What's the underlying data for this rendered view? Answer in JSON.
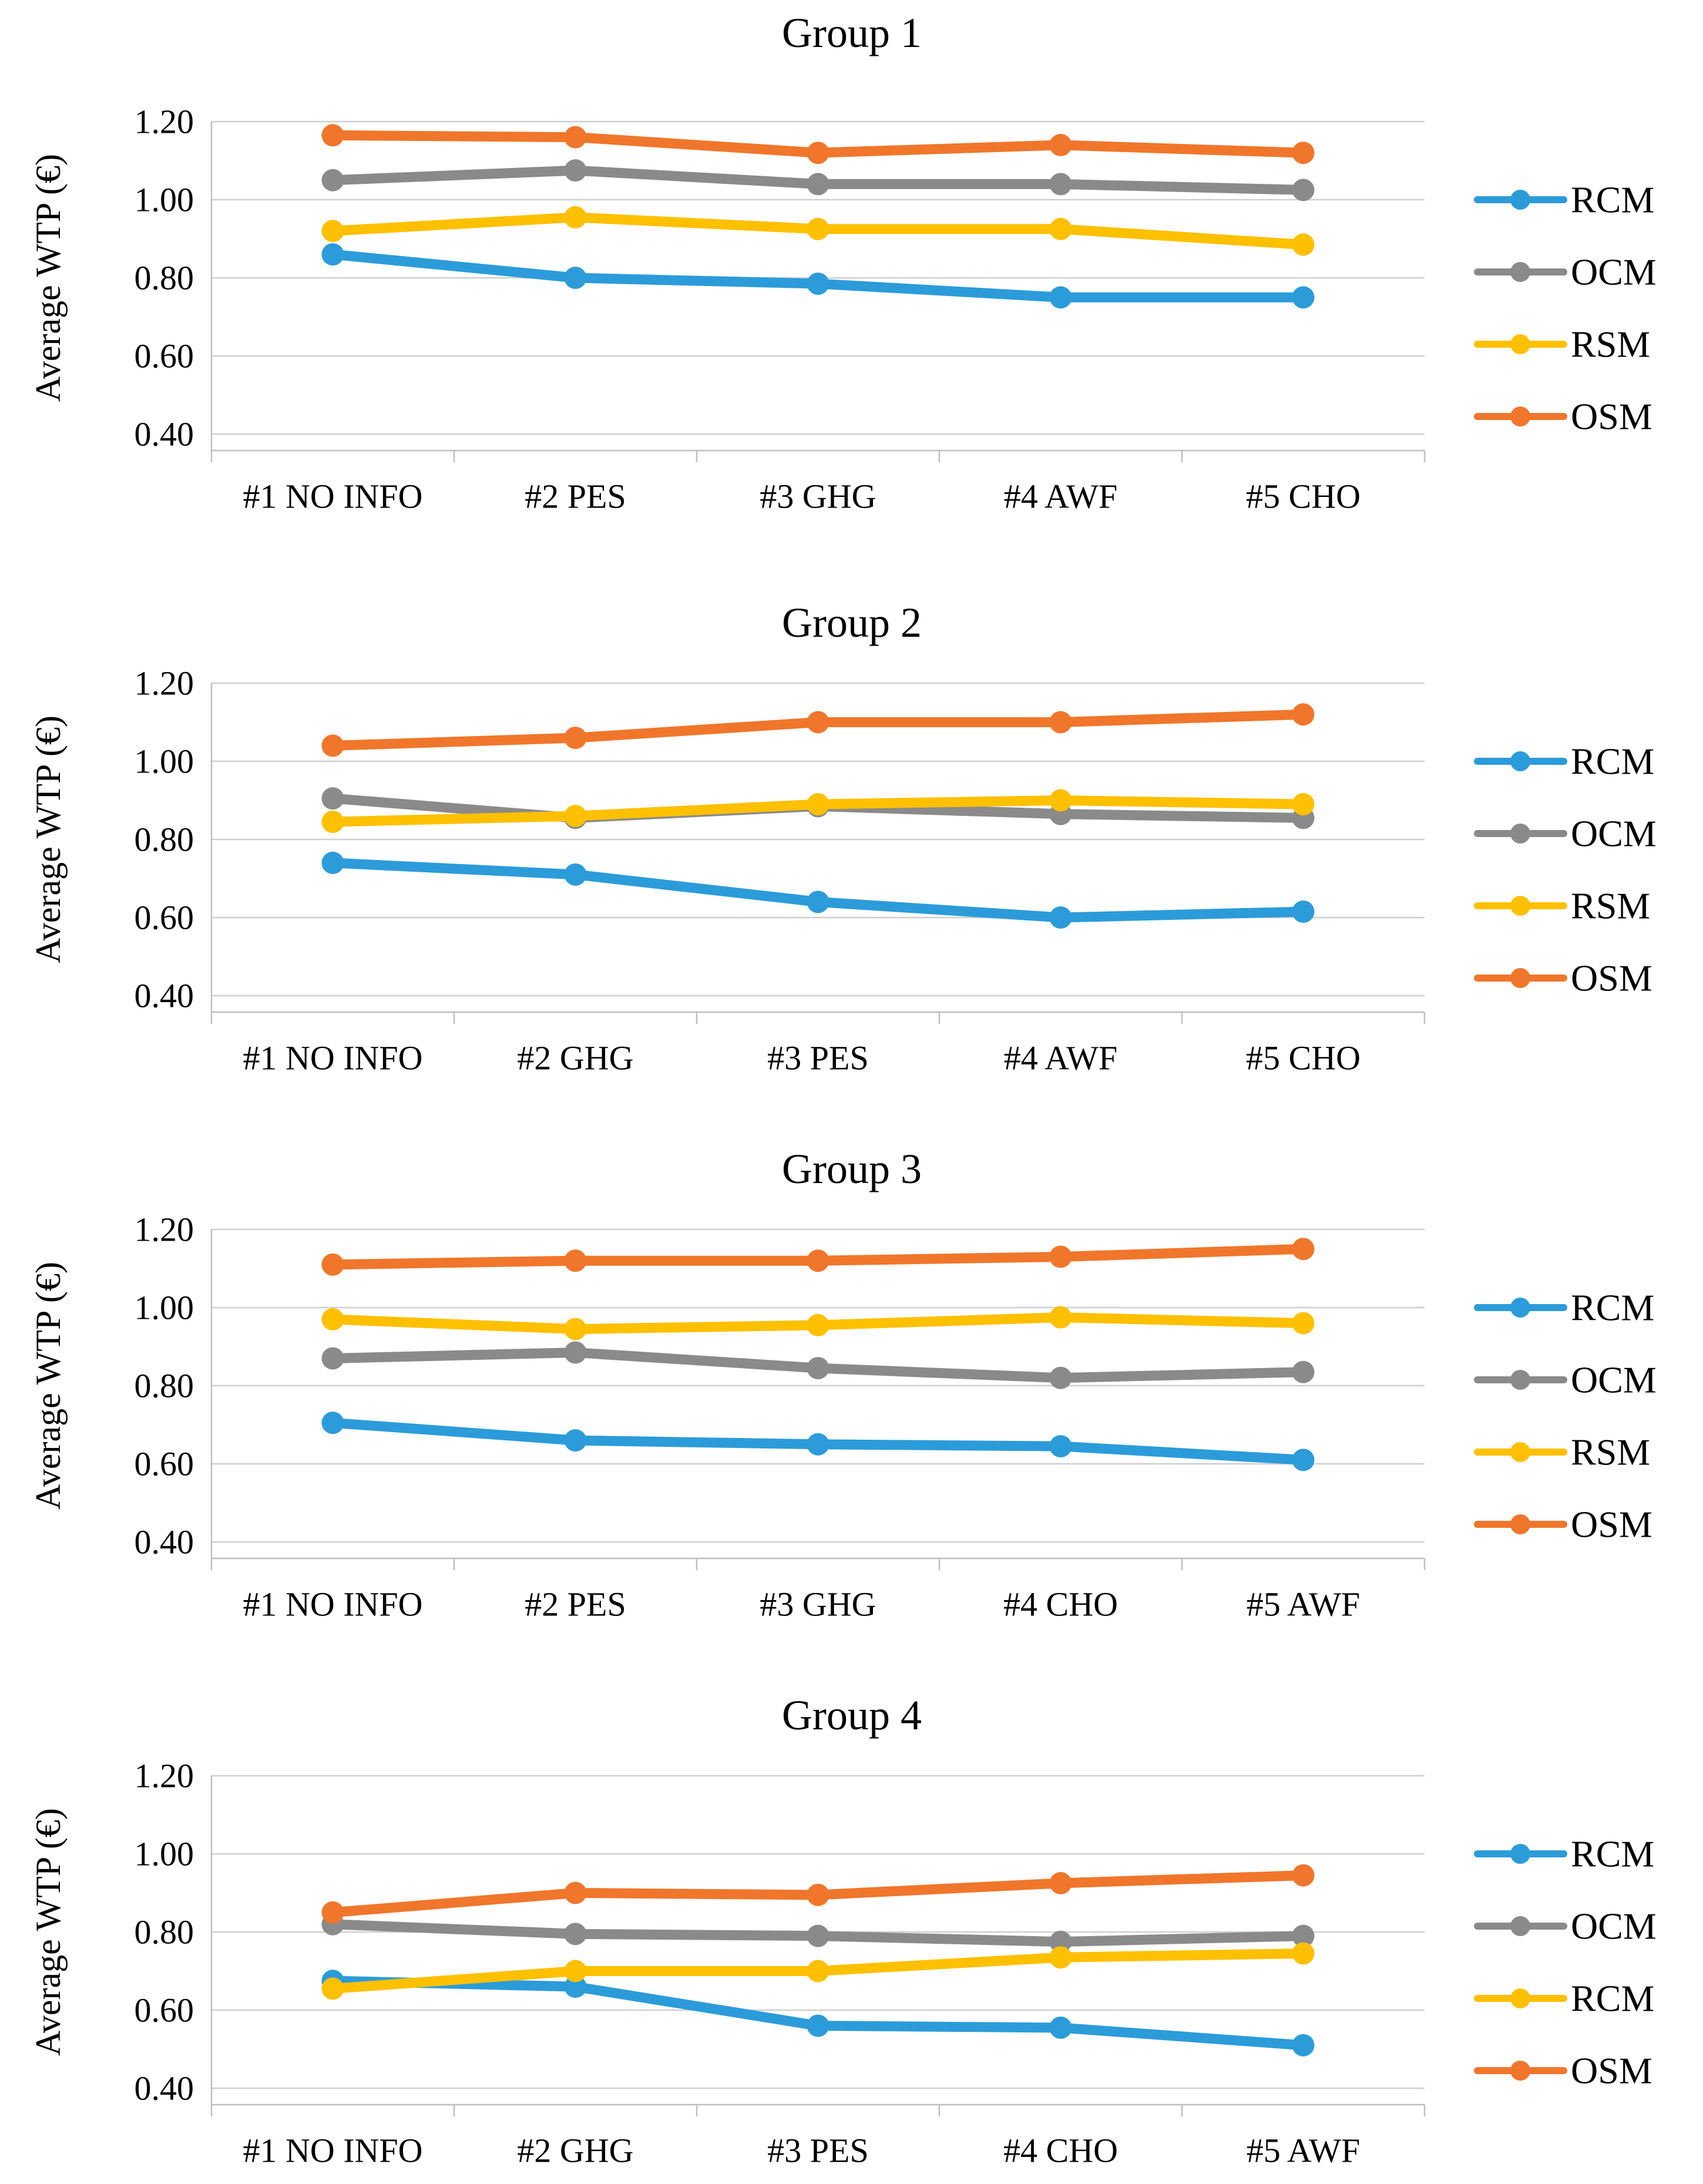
{
  "style_colors": {
    "series_blue": "#2B9CD9",
    "series_gray": "#8A8A8A",
    "series_yellow": "#FFC000",
    "series_orange": "#F0762B",
    "gridline": "#CFCFCF",
    "axis_line": "#BFBFBF",
    "text": "#000000"
  },
  "chart_data": [
    {
      "type": "line",
      "title": "Group 1",
      "ylabel": "Average WTP (€)",
      "ylim": [
        0.4,
        1.2
      ],
      "ytick_labels": [
        "1.20",
        "1.00",
        "0.80",
        "0.60",
        "0.40"
      ],
      "grid": true,
      "legend_position": "right",
      "categories": [
        "#1 NO INFO",
        "#2 PES",
        "#3 GHG",
        "#4 AWF",
        "#5 CHO"
      ],
      "series": [
        {
          "name": "RCM",
          "color": "#2B9CD9",
          "values": [
            0.86,
            0.8,
            0.785,
            0.75,
            0.75
          ]
        },
        {
          "name": "OCM",
          "color": "#8A8A8A",
          "values": [
            1.05,
            1.075,
            1.04,
            1.04,
            1.025
          ]
        },
        {
          "name": "RSM",
          "color": "#FFC000",
          "values": [
            0.92,
            0.955,
            0.925,
            0.925,
            0.885
          ]
        },
        {
          "name": "OSM",
          "color": "#F0762B",
          "values": [
            1.165,
            1.16,
            1.12,
            1.14,
            1.12
          ]
        }
      ]
    },
    {
      "type": "line",
      "title": "Group 2",
      "ylabel": "Average WTP (€)",
      "ylim": [
        0.4,
        1.2
      ],
      "ytick_labels": [
        "1.20",
        "1.00",
        "0.80",
        "0.60",
        "0.40"
      ],
      "grid": true,
      "legend_position": "right",
      "categories": [
        "#1 NO INFO",
        "#2 GHG",
        "#3 PES",
        "#4 AWF",
        "#5 CHO"
      ],
      "series": [
        {
          "name": "RCM",
          "color": "#2B9CD9",
          "values": [
            0.74,
            0.71,
            0.64,
            0.6,
            0.615
          ]
        },
        {
          "name": "OCM",
          "color": "#8A8A8A",
          "values": [
            0.905,
            0.855,
            0.885,
            0.865,
            0.855
          ]
        },
        {
          "name": "RSM",
          "color": "#FFC000",
          "values": [
            0.845,
            0.86,
            0.89,
            0.9,
            0.89
          ]
        },
        {
          "name": "OSM",
          "color": "#F0762B",
          "values": [
            1.04,
            1.06,
            1.1,
            1.1,
            1.12
          ]
        }
      ]
    },
    {
      "type": "line",
      "title": "Group 3",
      "ylabel": "Average WTP (€)",
      "ylim": [
        0.4,
        1.2
      ],
      "ytick_labels": [
        "1.20",
        "1.00",
        "0.80",
        "0.60",
        "0.40"
      ],
      "grid": true,
      "legend_position": "right",
      "categories": [
        "#1 NO INFO",
        "#2 PES",
        "#3 GHG",
        "#4 CHO",
        "#5 AWF"
      ],
      "series": [
        {
          "name": "RCM",
          "color": "#2B9CD9",
          "values": [
            0.705,
            0.66,
            0.65,
            0.645,
            0.61
          ]
        },
        {
          "name": "OCM",
          "color": "#8A8A8A",
          "values": [
            0.87,
            0.885,
            0.845,
            0.82,
            0.835
          ]
        },
        {
          "name": "RSM",
          "color": "#FFC000",
          "values": [
            0.97,
            0.945,
            0.955,
            0.975,
            0.96
          ]
        },
        {
          "name": "OSM",
          "color": "#F0762B",
          "values": [
            1.11,
            1.12,
            1.12,
            1.13,
            1.15
          ]
        }
      ]
    },
    {
      "type": "line",
      "title": "Group 4",
      "ylabel": "Average WTP (€)",
      "ylim": [
        0.4,
        1.2
      ],
      "ytick_labels": [
        "1.20",
        "1.00",
        "0.80",
        "0.60",
        "0.40"
      ],
      "grid": true,
      "legend_position": "right",
      "categories": [
        "#1 NO INFO",
        "#2 GHG",
        "#3 PES",
        "#4 CHO",
        "#5 AWF"
      ],
      "series": [
        {
          "name": "RCM",
          "color": "#2B9CD9",
          "values": [
            0.675,
            0.66,
            0.56,
            0.555,
            0.51
          ]
        },
        {
          "name": "OCM",
          "color": "#8A8A8A",
          "values": [
            0.82,
            0.795,
            0.79,
            0.775,
            0.79
          ]
        },
        {
          "name": "RCM",
          "color": "#FFC000",
          "values": [
            0.655,
            0.7,
            0.7,
            0.735,
            0.745
          ]
        },
        {
          "name": "OSM",
          "color": "#F0762B",
          "values": [
            0.85,
            0.9,
            0.895,
            0.925,
            0.945
          ]
        }
      ]
    }
  ]
}
